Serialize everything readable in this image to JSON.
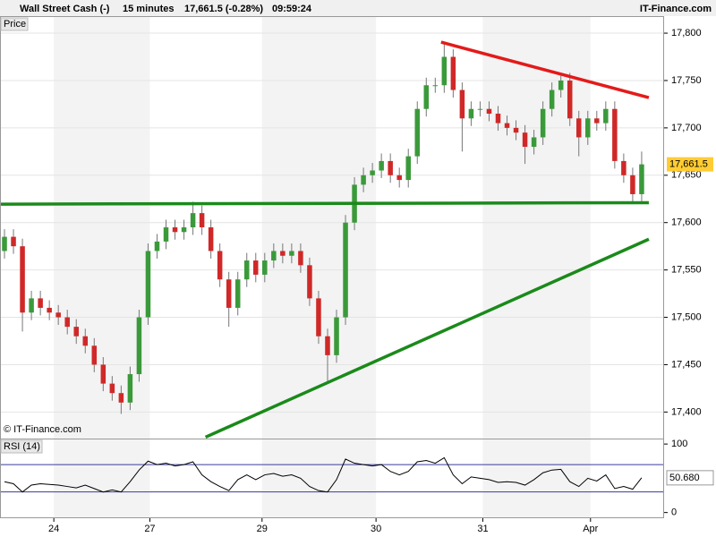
{
  "header": {
    "instrument": "Wall Street Cash (-)",
    "interval": "15 minutes",
    "quote": "17,661.5 (-0.28%)",
    "time": "09:59:24",
    "brand": "IT-Finance.com"
  },
  "chart_data": [
    {
      "type": "candlestick",
      "panel_label": "Price",
      "watermark": "© IT-Finance.com",
      "up_color": "#3a9a3a",
      "down_color": "#d02828",
      "x": [
        0,
        1,
        2,
        3,
        4,
        5,
        6,
        7,
        8,
        9,
        10,
        11,
        12,
        13,
        14,
        15,
        16,
        17,
        18,
        19,
        20,
        21,
        22,
        23,
        24,
        25,
        26,
        27,
        28,
        29,
        30,
        31,
        32,
        33,
        34,
        35,
        36,
        37,
        38,
        39,
        40,
        41,
        42,
        43,
        44,
        45,
        46,
        47,
        48,
        49,
        50,
        51,
        52,
        53,
        54,
        55,
        56,
        57,
        58,
        59,
        60,
        61,
        62,
        63,
        64,
        65,
        66,
        67,
        68,
        69,
        70,
        71
      ],
      "open": [
        17570,
        17585,
        17575,
        17505,
        17520,
        17510,
        17505,
        17500,
        17490,
        17480,
        17470,
        17450,
        17430,
        17420,
        17410,
        17440,
        17500,
        17570,
        17580,
        17595,
        17590,
        17595,
        17610,
        17595,
        17570,
        17540,
        17510,
        17540,
        17560,
        17545,
        17560,
        17570,
        17565,
        17570,
        17555,
        17520,
        17480,
        17460,
        17500,
        17600,
        17640,
        17650,
        17655,
        17665,
        17650,
        17645,
        17670,
        17720,
        17745,
        17745,
        17775,
        17740,
        17710,
        17720,
        17720,
        17715,
        17705,
        17700,
        17695,
        17680,
        17690,
        17720,
        17740,
        17750,
        17710,
        17690,
        17710,
        17705,
        17720,
        17665,
        17650,
        17630
      ],
      "high": [
        17593,
        17593,
        17583,
        17528,
        17528,
        17518,
        17513,
        17508,
        17498,
        17488,
        17478,
        17458,
        17438,
        17428,
        17448,
        17508,
        17578,
        17588,
        17603,
        17603,
        17603,
        17622,
        17618,
        17603,
        17578,
        17548,
        17548,
        17568,
        17568,
        17568,
        17578,
        17578,
        17578,
        17578,
        17563,
        17528,
        17488,
        17508,
        17608,
        17648,
        17658,
        17663,
        17673,
        17673,
        17658,
        17678,
        17728,
        17753,
        17753,
        17790,
        17783,
        17748,
        17728,
        17728,
        17728,
        17723,
        17713,
        17708,
        17703,
        17698,
        17728,
        17748,
        17755,
        17758,
        17718,
        17718,
        17718,
        17728,
        17728,
        17673,
        17658,
        17675
      ],
      "low": [
        17562,
        17567,
        17485,
        17497,
        17502,
        17497,
        17492,
        17482,
        17472,
        17462,
        17442,
        17422,
        17412,
        17398,
        17402,
        17432,
        17492,
        17562,
        17572,
        17582,
        17582,
        17587,
        17587,
        17562,
        17532,
        17490,
        17502,
        17532,
        17537,
        17537,
        17552,
        17557,
        17557,
        17547,
        17512,
        17472,
        17432,
        17452,
        17492,
        17592,
        17632,
        17642,
        17647,
        17642,
        17637,
        17637,
        17662,
        17712,
        17737,
        17737,
        17732,
        17675,
        17702,
        17712,
        17707,
        17697,
        17692,
        17687,
        17662,
        17672,
        17682,
        17712,
        17732,
        17702,
        17670,
        17682,
        17697,
        17697,
        17657,
        17642,
        17620,
        17622
      ],
      "close": [
        17585,
        17575,
        17505,
        17520,
        17510,
        17505,
        17500,
        17490,
        17480,
        17470,
        17450,
        17430,
        17420,
        17410,
        17440,
        17500,
        17570,
        17580,
        17595,
        17590,
        17595,
        17610,
        17595,
        17570,
        17540,
        17510,
        17540,
        17560,
        17545,
        17560,
        17570,
        17565,
        17570,
        17555,
        17520,
        17480,
        17460,
        17500,
        17600,
        17640,
        17650,
        17655,
        17665,
        17650,
        17645,
        17670,
        17720,
        17745,
        17745,
        17775,
        17740,
        17710,
        17720,
        17720,
        17715,
        17705,
        17700,
        17695,
        17680,
        17690,
        17720,
        17740,
        17750,
        17710,
        17690,
        17710,
        17705,
        17720,
        17665,
        17650,
        17630,
        17661.5
      ],
      "last_price": {
        "value": 17661.5,
        "label": "17,661.5"
      },
      "trendlines": [
        {
          "color": "#e41a1a",
          "x": [
            48.65,
            71.8
          ],
          "y": [
            17790.5,
            17732
          ]
        },
        {
          "color": "#1a8a1a",
          "x": [
            -0.5,
            71.8
          ],
          "y": [
            17619.5,
            17621
          ]
        },
        {
          "color": "#1a8a1a",
          "x": [
            22.4,
            71.8
          ],
          "y": [
            17373.5,
            17582.5
          ]
        }
      ],
      "xlim": [
        -0.5,
        73.5
      ],
      "ylim": [
        17372,
        17818
      ],
      "xticks": [
        {
          "value": 5.5,
          "label": "24"
        },
        {
          "value": 16.2,
          "label": "27"
        },
        {
          "value": 28.7,
          "label": "29"
        },
        {
          "value": 41.4,
          "label": "30"
        },
        {
          "value": 53.3,
          "label": "31"
        },
        {
          "value": 65.3,
          "label": "Apr"
        }
      ],
      "yticks": [
        {
          "value": 17400,
          "label": "17,400"
        },
        {
          "value": 17450,
          "label": "17,450"
        },
        {
          "value": 17500,
          "label": "17,500"
        },
        {
          "value": 17550,
          "label": "17,550"
        },
        {
          "value": 17600,
          "label": "17,600"
        },
        {
          "value": 17650,
          "label": "17,650"
        },
        {
          "value": 17700,
          "label": "17,700"
        },
        {
          "value": 17750,
          "label": "17,750"
        },
        {
          "value": 17800,
          "label": "17,800"
        }
      ],
      "grid": true
    },
    {
      "type": "line",
      "panel_label": "RSI (14)",
      "color": "#000000",
      "level_color": "#3a3a9a",
      "x": [
        0,
        1,
        2,
        3,
        4,
        5,
        6,
        7,
        8,
        9,
        10,
        11,
        12,
        13,
        14,
        15,
        16,
        17,
        18,
        19,
        20,
        21,
        22,
        23,
        24,
        25,
        26,
        27,
        28,
        29,
        30,
        31,
        32,
        33,
        34,
        35,
        36,
        37,
        38,
        39,
        40,
        41,
        42,
        43,
        44,
        45,
        46,
        47,
        48,
        49,
        50,
        51,
        52,
        53,
        54,
        55,
        56,
        57,
        58,
        59,
        60,
        61,
        62,
        63,
        64,
        65,
        66,
        67,
        68,
        69,
        70,
        71
      ],
      "values": [
        45,
        42,
        30,
        40,
        42,
        41,
        40,
        38,
        36,
        40,
        35,
        30,
        33,
        30,
        45,
        62,
        75,
        70,
        72,
        68,
        70,
        74,
        55,
        45,
        38,
        32,
        48,
        55,
        48,
        55,
        57,
        53,
        55,
        50,
        38,
        32,
        30,
        48,
        78,
        72,
        70,
        68,
        70,
        60,
        55,
        60,
        74,
        76,
        72,
        80,
        55,
        42,
        52,
        50,
        48,
        44,
        45,
        44,
        40,
        48,
        58,
        62,
        63,
        45,
        38,
        50,
        46,
        55,
        35,
        38,
        34,
        50.68
      ],
      "last_value": {
        "value": 50.68,
        "label": "50.680"
      },
      "levels": [
        70,
        30
      ],
      "xlim": [
        -0.5,
        73.5
      ],
      "ylim": [
        -7,
        108
      ],
      "yticks": [
        100,
        0
      ]
    }
  ]
}
